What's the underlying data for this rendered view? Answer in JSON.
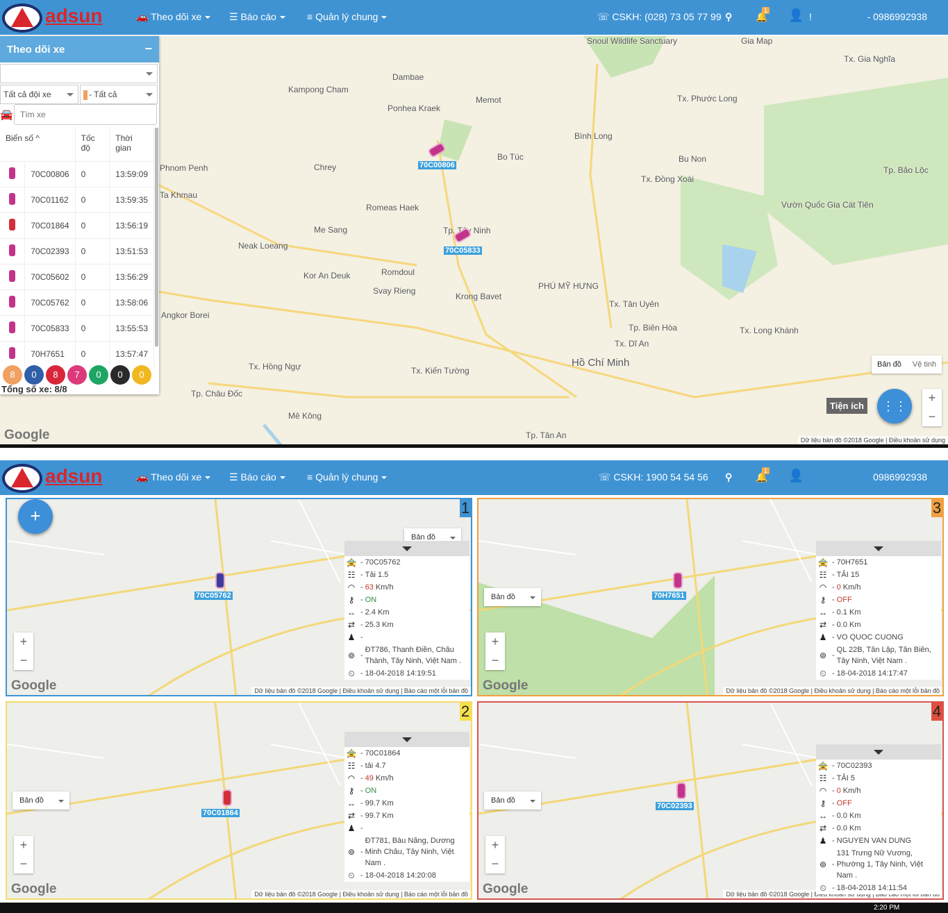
{
  "brand": "adsun",
  "nav_top": {
    "menu": [
      "Theo dõi xe",
      "Báo cáo",
      "Quản lý chung"
    ],
    "hotline": "CSKH: (028) 73 05 77 99",
    "notif_count": "1",
    "user_sep": "!",
    "phone": "- 0986992938"
  },
  "nav_bottom": {
    "menu": [
      "Theo dõi xe",
      "Báo cáo",
      "Quản lý chung"
    ],
    "hotline": "CSKH: 1900 54 54 56",
    "notif_count": "1",
    "phone": "0986992938"
  },
  "panel": {
    "title": "Theo dõi xe",
    "minimize": "−",
    "company_select": "",
    "fleet_select": "Tất cả đội xe",
    "status_select": "- Tất cả",
    "search_placeholder": "Tìm xe",
    "headers": [
      "Biển số ^",
      "Tốc độ",
      "Thời gian"
    ],
    "rows": [
      {
        "plate": "70C00806",
        "speed": "0",
        "time": "13:59:09",
        "color": "#c2348a"
      },
      {
        "plate": "70C01162",
        "speed": "0",
        "time": "13:59:35",
        "color": "#c2348a"
      },
      {
        "plate": "70C01864",
        "speed": "0",
        "time": "13:56:19",
        "color": "#d22f3a"
      },
      {
        "plate": "70C02393",
        "speed": "0",
        "time": "13:51:53",
        "color": "#c2348a"
      },
      {
        "plate": "70C05602",
        "speed": "0",
        "time": "13:56:29",
        "color": "#c2348a"
      },
      {
        "plate": "70C05762",
        "speed": "0",
        "time": "13:58:06",
        "color": "#c2348a"
      },
      {
        "plate": "70C05833",
        "speed": "0",
        "time": "13:55:53",
        "color": "#c2348a"
      },
      {
        "plate": "70H7651",
        "speed": "0",
        "time": "13:57:47",
        "color": "#c2348a"
      }
    ],
    "counters": [
      {
        "v": "8",
        "color": "#f0a060"
      },
      {
        "v": "0",
        "color": "#2f5fa8"
      },
      {
        "v": "8",
        "color": "#d8263a"
      },
      {
        "v": "7",
        "color": "#dd3a7a"
      },
      {
        "v": "0",
        "color": "#1fa563"
      },
      {
        "v": "0",
        "color": "#2a2a2a"
      },
      {
        "v": "0",
        "color": "#f0b820"
      }
    ],
    "total": "Tổng số xe: 8/8"
  },
  "main_map": {
    "vehicles": [
      "70C00806",
      "70C05833"
    ],
    "map_btn": "Bản đồ",
    "sat_btn": "Vệ tinh",
    "utility": "Tiện ích",
    "zoom_in": "+",
    "zoom_out": "−",
    "attribution": "Dữ liệu bản đồ ©2018 Google | Điều khoản sử dụng",
    "google": "Google",
    "labels": [
      "Kampong Cham",
      "Dambae",
      "Memot",
      "Ponhea Kraek",
      "Bo Túc",
      "Tp. Tây Ninh",
      "Tx. Phước Long",
      "Bình Long",
      "Bu Non",
      "Tx. Đồng Xoài",
      "Tp. Bảo Lộc",
      "Vườn Quốc Gia Cát Tiên",
      "Snoul Wildlife Sanctuary",
      "Tx. Gia Nghĩa",
      "Gia Map",
      "Phnom Penh",
      "Ta Khmau",
      "Chrey",
      "Romeas Haek",
      "Me Sang",
      "Neak Loeang",
      "Kor An Deuk",
      "Romdoul",
      "Svay Rieng",
      "Krong Bavet",
      "Tx. Tân Uyên",
      "Tp. Biên Hòa",
      "Tx. Dĩ An",
      "Hồ Chí Minh",
      "Tx. Long Khánh",
      "Tx. Hồng Ngự",
      "Tx. Kiến Tường",
      "Tp. Châu Đốc",
      "Tp. Tân An",
      "Mê Kông",
      "PHÚ MỸ HƯNG",
      "Angkor Borei"
    ]
  },
  "quads": [
    {
      "num": "1",
      "border": "#3f93d3",
      "numbg": "#3f93d3",
      "vehicle": "70C05762",
      "map_btn": "Bản đồ",
      "info": {
        "plate": "70C05762",
        "load": "Tải 1.5",
        "speed": "63",
        "speed_unit": "Km/h",
        "ignition": "ON",
        "dist": "2.4 Km",
        "total": "25.3 Km",
        "driver": "",
        "address": "ĐT786, Thanh Điền, Châu Thành, Tây Ninh, Việt Nam .",
        "time": "18-04-2018 14:19:51"
      }
    },
    {
      "num": "3",
      "border": "#f0a040",
      "numbg": "#f0a040",
      "vehicle": "70H7651",
      "map_btn": "Bản đồ",
      "info": {
        "plate": "70H7651",
        "load": "TẢI 15",
        "speed": "0",
        "speed_unit": "Km/h",
        "ignition": "OFF",
        "dist": "0.1 Km",
        "total": "0.0 Km",
        "driver": "VO QUOC CUONG",
        "address": "QL 22B, Tân Lập, Tân Biên, Tây Ninh, Việt Nam .",
        "time": "18-04-2018 14:17:47"
      }
    },
    {
      "num": "2",
      "border": "#f5dc6a",
      "numbg": "#f5e04a",
      "vehicle": "70C01864",
      "map_btn": "Bản đồ",
      "info": {
        "plate": "70C01864",
        "load": "tải 4.7",
        "speed": "49",
        "speed_unit": "Km/h",
        "ignition": "ON",
        "dist": "99.7 Km",
        "total": "99.7 Km",
        "driver": "",
        "address": "ĐT781, Bàu Năng, Dương Minh Châu, Tây Ninh, Việt Nam .",
        "time": "18-04-2018 14:20:08"
      }
    },
    {
      "num": "4",
      "border": "#d9534f",
      "numbg": "#e05040",
      "vehicle": "70C02393",
      "map_btn": "Bản đồ",
      "info": {
        "plate": "70C02393",
        "load": "TẢI 5",
        "speed": "0",
        "speed_unit": "Km/h",
        "ignition": "OFF",
        "dist": "0.0 Km",
        "total": "0.0 Km",
        "driver": "NGUYEN VAN DUNG",
        "address": "131 Trưng Nữ Vương, Phường 1, Tây Ninh, Việt Nam .",
        "time": "18-04-2018 14:11:54"
      }
    }
  ],
  "quad_common": {
    "zoom_in": "+",
    "zoom_out": "−",
    "google": "Google",
    "attribution": "Dữ liệu bản đồ ©2018 Google | Điều khoản sử dụng | Báo cáo một lỗi bản đồ",
    "add": "+"
  },
  "taskbar": {
    "clock": "2:20 PM"
  },
  "colors": {
    "nav": "#3f93d3",
    "on": "#2e8b3e",
    "off": "#c0392b"
  }
}
